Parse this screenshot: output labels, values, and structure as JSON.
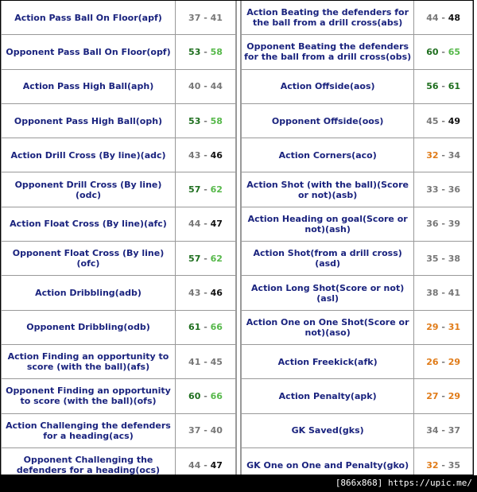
{
  "left_rows": [
    {
      "label": "Action Pass Ball On Floor(apf)",
      "lo": "37",
      "hi": "41",
      "lo_c": "v-gray",
      "hi_c": "v-gray"
    },
    {
      "label": "Opponent Pass Ball On Floor(opf)",
      "lo": "53",
      "hi": "58",
      "lo_c": "v-green",
      "hi_c": "v-lgreen"
    },
    {
      "label": "Action Pass High Ball(aph)",
      "lo": "40",
      "hi": "44",
      "lo_c": "v-gray",
      "hi_c": "v-gray"
    },
    {
      "label": "Opponent Pass High Ball(oph)",
      "lo": "53",
      "hi": "58",
      "lo_c": "v-green",
      "hi_c": "v-lgreen"
    },
    {
      "label": "Action Drill Cross (By line)(adc)",
      "lo": "43",
      "hi": "46",
      "lo_c": "v-gray",
      "hi_c": "v-black"
    },
    {
      "label": "Opponent Drill Cross (By line)(odc)",
      "lo": "57",
      "hi": "62",
      "lo_c": "v-green",
      "hi_c": "v-lgreen"
    },
    {
      "label": "Action Float Cross (By line)(afc)",
      "lo": "44",
      "hi": "47",
      "lo_c": "v-gray",
      "hi_c": "v-black"
    },
    {
      "label": "Opponent Float Cross (By line)(ofc)",
      "lo": "57",
      "hi": "62",
      "lo_c": "v-green",
      "hi_c": "v-lgreen"
    },
    {
      "label": "Action Dribbling(adb)",
      "lo": "43",
      "hi": "46",
      "lo_c": "v-gray",
      "hi_c": "v-black"
    },
    {
      "label": "Opponent Dribbling(odb)",
      "lo": "61",
      "hi": "66",
      "lo_c": "v-green",
      "hi_c": "v-lgreen"
    },
    {
      "label": "Action Finding an opportunity to score (with the ball)(afs)",
      "lo": "41",
      "hi": "45",
      "lo_c": "v-gray",
      "hi_c": "v-gray"
    },
    {
      "label": "Opponent Finding an opportunity to score (with the ball)(ofs)",
      "lo": "60",
      "hi": "66",
      "lo_c": "v-green",
      "hi_c": "v-lgreen"
    },
    {
      "label": "Action Challenging the defenders for a heading(acs)",
      "lo": "37",
      "hi": "40",
      "lo_c": "v-gray",
      "hi_c": "v-gray"
    },
    {
      "label": "Opponent Challenging the defenders for a heading(ocs)",
      "lo": "44",
      "hi": "47",
      "lo_c": "v-gray",
      "hi_c": "v-black"
    }
  ],
  "right_rows": [
    {
      "label": "Action Beating the defenders for the ball from a drill cross(abs)",
      "lo": "44",
      "hi": "48",
      "lo_c": "v-gray",
      "hi_c": "v-black"
    },
    {
      "label": "Opponent Beating the defenders for the ball from a drill cross(obs)",
      "lo": "60",
      "hi": "65",
      "lo_c": "v-green",
      "hi_c": "v-lgreen"
    },
    {
      "label": "Action Offside(aos)",
      "lo": "56",
      "hi": "61",
      "lo_c": "v-green",
      "hi_c": "v-green"
    },
    {
      "label": "Opponent Offside(oos)",
      "lo": "45",
      "hi": "49",
      "lo_c": "v-gray",
      "hi_c": "v-black"
    },
    {
      "label": "Action Corners(aco)",
      "lo": "32",
      "hi": "34",
      "lo_c": "v-orange",
      "hi_c": "v-gray"
    },
    {
      "label": "Action Shot (with the ball)(Score or not)(asb)",
      "lo": "33",
      "hi": "36",
      "lo_c": "v-gray",
      "hi_c": "v-gray"
    },
    {
      "label": "Action Heading on goal(Score or not)(ash)",
      "lo": "36",
      "hi": "39",
      "lo_c": "v-gray",
      "hi_c": "v-gray"
    },
    {
      "label": "Action Shot(from a drill cross)(asd)",
      "lo": "35",
      "hi": "38",
      "lo_c": "v-gray",
      "hi_c": "v-gray"
    },
    {
      "label": "Action Long Shot(Score or not)(asl)",
      "lo": "38",
      "hi": "41",
      "lo_c": "v-gray",
      "hi_c": "v-gray"
    },
    {
      "label": "Action One on One Shot(Score or not)(aso)",
      "lo": "29",
      "hi": "31",
      "lo_c": "v-orange",
      "hi_c": "v-orange"
    },
    {
      "label": "Action Freekick(afk)",
      "lo": "26",
      "hi": "29",
      "lo_c": "v-orange",
      "hi_c": "v-orange"
    },
    {
      "label": "Action Penalty(apk)",
      "lo": "27",
      "hi": "29",
      "lo_c": "v-orange",
      "hi_c": "v-orange"
    },
    {
      "label": "GK Saved(gks)",
      "lo": "34",
      "hi": "37",
      "lo_c": "v-gray",
      "hi_c": "v-gray"
    },
    {
      "label": "GK One on One and Penalty(gko)",
      "lo": "32",
      "hi": "35",
      "lo_c": "v-orange",
      "hi_c": "v-gray"
    }
  ],
  "separator": "-",
  "footer": {
    "text": "[866x868] https://upic.me/"
  },
  "colors": {
    "label": "#1a237e",
    "green": "#1e6e1e",
    "light_green": "#56b84a",
    "orange": "#e07b18",
    "gray": "#777777"
  }
}
